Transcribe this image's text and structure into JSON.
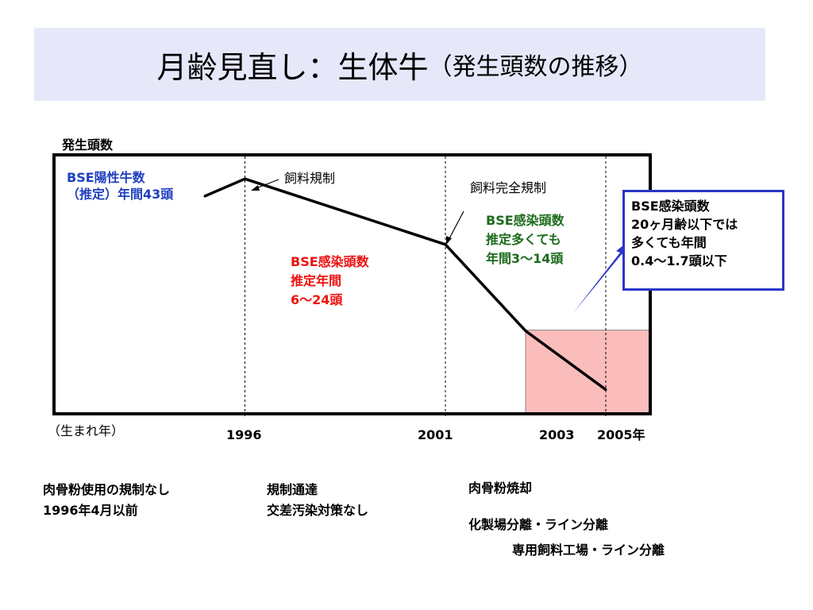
{
  "title": {
    "main": "月齢見直し：生体牛",
    "sub": "（発生頭数の推移）"
  },
  "chart_data": {
    "type": "line",
    "ylabel": "発生頭数",
    "xlabel": "（生まれ年）",
    "x_ticks": [
      "1996",
      "2001",
      "2003",
      "2005年"
    ],
    "series": [
      {
        "values": [
          {
            "x": 1995,
            "y": 63
          },
          {
            "x": 1996,
            "y": 68
          },
          {
            "x": 2001,
            "y": 49
          },
          {
            "x": 2003,
            "y": 24
          },
          {
            "x": 2005,
            "y": 7
          }
        ]
      }
    ],
    "ylim": [
      0,
      75
    ],
    "shaded_region": {
      "x": [
        2003,
        2005
      ],
      "color": "#fbbcbc"
    },
    "vertical_markers": [
      "1996",
      "2001",
      "2005"
    ],
    "annotations": {
      "bse_cases": [
        "BSE陽性牛数",
        "（推定）年間43頭"
      ],
      "feed_regulation": "飼料規制",
      "feed_full_regulation": "飼料完全規制",
      "infection_mid": [
        "BSE感染頭数",
        "推定年間",
        "6～24頭"
      ],
      "infection_late": [
        "BSE感染頭数",
        "推定多くても",
        "年間3～14頭"
      ],
      "callout": [
        "BSE感染頭数",
        "20ヶ月齢以下では",
        "多くても年間",
        "0.4～1.7頭以下"
      ]
    }
  },
  "notes": {
    "col1": [
      "肉骨粉使用の規制なし",
      "1996年4月以前"
    ],
    "col2": [
      "規制通達",
      "交差汚染対策なし"
    ],
    "col3": [
      "肉骨粉焼却",
      "化製場分離・ライン分離",
      "専用飼料工場・ライン分離"
    ]
  },
  "colors": {
    "blue": "#1f3fbf",
    "red": "#ee1111",
    "green": "#1c6b1c",
    "shade": "#fbbcbc",
    "callout_border": "#2a36c8",
    "title_bg": "#e6e8fa"
  }
}
